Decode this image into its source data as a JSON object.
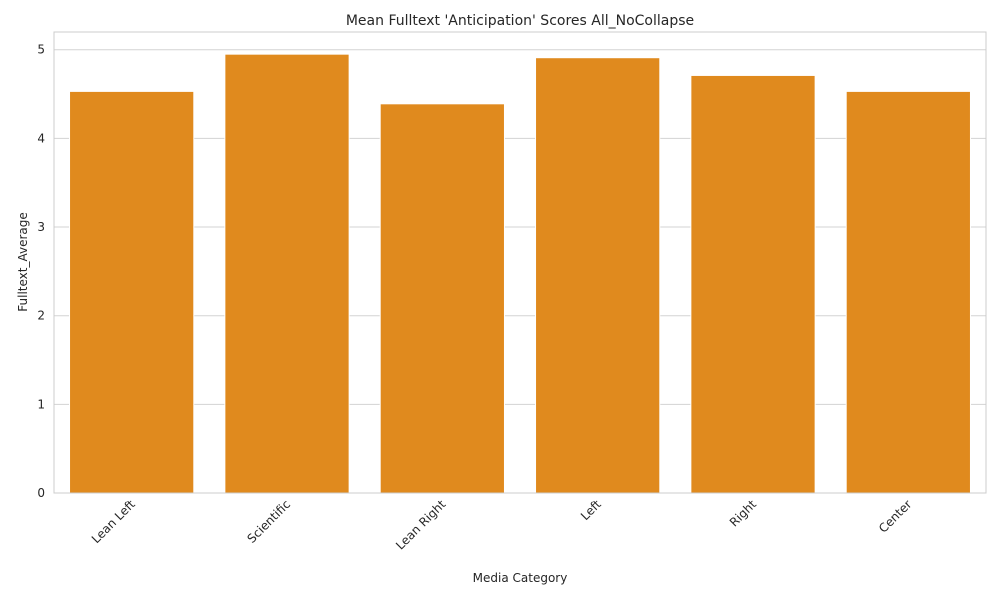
{
  "chart_data": {
    "type": "bar",
    "title": "Mean Fulltext 'Anticipation' Scores All_NoCollapse",
    "xlabel": "Media Category",
    "ylabel": "Fulltext_Average",
    "categories": [
      "Lean Left",
      "Scientific",
      "Lean Right",
      "Left",
      "Right",
      "Center"
    ],
    "values": [
      4.53,
      4.95,
      4.39,
      4.91,
      4.71,
      4.53
    ],
    "ylim": [
      0,
      5.2
    ],
    "yticks": [
      0,
      1,
      2,
      3,
      4,
      5
    ],
    "bar_color": "#e08a1e",
    "grid": "horizontal",
    "legend": "none"
  }
}
